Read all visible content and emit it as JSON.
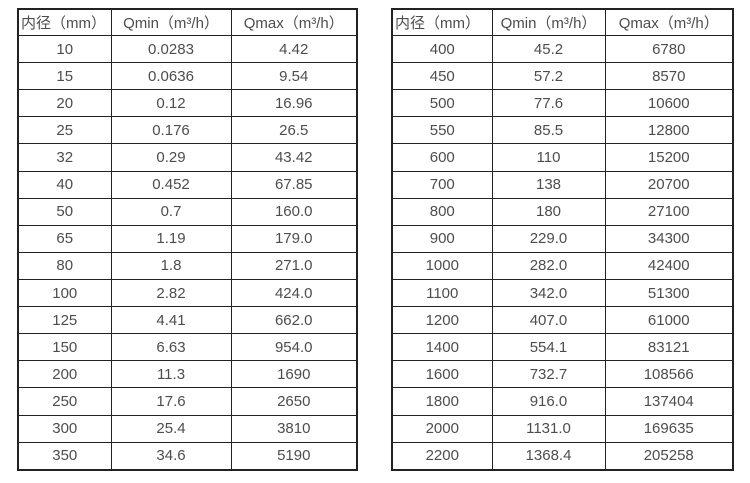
{
  "page": {
    "background_color": "#ffffff",
    "border_color": "#222222",
    "text_color": "#4d4d4d"
  },
  "tables": [
    {
      "title": "flow-rate-table-small-diameters",
      "headers": [
        "内径（mm）",
        "Qmin（m³/h）",
        "Qmax（m³/h）"
      ],
      "rows": [
        [
          "10",
          "0.0283",
          "4.42"
        ],
        [
          "15",
          "0.0636",
          "9.54"
        ],
        [
          "20",
          "0.12",
          "16.96"
        ],
        [
          "25",
          "0.176",
          "26.5"
        ],
        [
          "32",
          "0.29",
          "43.42"
        ],
        [
          "40",
          "0.452",
          "67.85"
        ],
        [
          "50",
          "0.7",
          "160.0"
        ],
        [
          "65",
          "1.19",
          "179.0"
        ],
        [
          "80",
          "1.8",
          "271.0"
        ],
        [
          "100",
          "2.82",
          "424.0"
        ],
        [
          "125",
          "4.41",
          "662.0"
        ],
        [
          "150",
          "6.63",
          "954.0"
        ],
        [
          "200",
          "11.3",
          "1690"
        ],
        [
          "250",
          "17.6",
          "2650"
        ],
        [
          "300",
          "25.4",
          "3810"
        ],
        [
          "350",
          "34.6",
          "5190"
        ]
      ]
    },
    {
      "title": "flow-rate-table-large-diameters",
      "headers": [
        "内径（mm）",
        "Qmin（m³/h）",
        "Qmax（m³/h）"
      ],
      "rows": [
        [
          "400",
          "45.2",
          "6780"
        ],
        [
          "450",
          "57.2",
          "8570"
        ],
        [
          "500",
          "77.6",
          "10600"
        ],
        [
          "550",
          "85.5",
          "12800"
        ],
        [
          "600",
          "110",
          "15200"
        ],
        [
          "700",
          "138",
          "20700"
        ],
        [
          "800",
          "180",
          "27100"
        ],
        [
          "900",
          "229.0",
          "34300"
        ],
        [
          "1000",
          "282.0",
          "42400"
        ],
        [
          "1100",
          "342.0",
          "51300"
        ],
        [
          "1200",
          "407.0",
          "61000"
        ],
        [
          "1400",
          "554.1",
          "83121"
        ],
        [
          "1600",
          "732.7",
          "108566"
        ],
        [
          "1800",
          "916.0",
          "137404"
        ],
        [
          "2000",
          "1131.0",
          "169635"
        ],
        [
          "2200",
          "1368.4",
          "205258"
        ]
      ]
    }
  ]
}
